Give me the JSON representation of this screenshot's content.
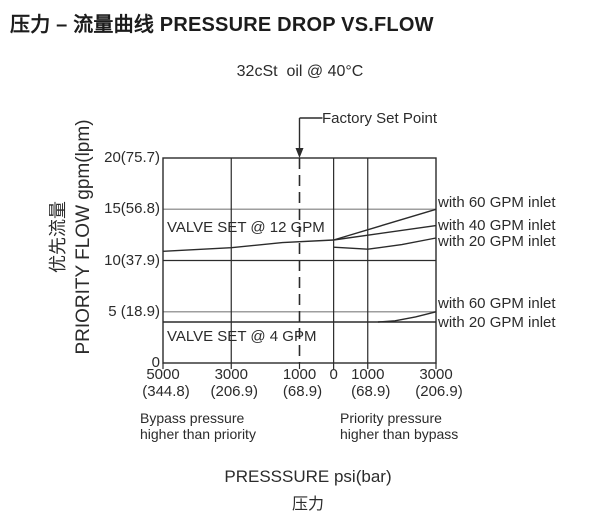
{
  "title": "压力 – 流量曲线 PRESSURE DROP VS.FLOW",
  "chart_data": {
    "type": "line",
    "title": "压力 – 流量曲线 PRESSURE DROP VS.FLOW",
    "subtitle": "32cSt  oil @ 40°C",
    "ylabel": "PRIORITY FLOW gpm(lpm)",
    "ylabel_cn": "优先流量",
    "xlabel": "PRESSSURE psi(bar)",
    "xlabel_cn": "压力",
    "xlim": [
      -5000,
      3000
    ],
    "ylim": [
      0,
      20
    ],
    "grid": "partial",
    "legend_position": "right-of-curves",
    "y_ticks": [
      {
        "value": 20,
        "label": "20(75.7)"
      },
      {
        "value": 15,
        "label": "15(56.8)",
        "grid": "gray"
      },
      {
        "value": 10,
        "label": "10(37.9)",
        "grid": "black"
      },
      {
        "value": 5,
        "label": "5 (18.9)",
        "grid": "gray"
      },
      {
        "value": 0,
        "label": "0"
      }
    ],
    "x_ticks": [
      {
        "value": -5000,
        "psi": "5000",
        "bar": "(344.8)"
      },
      {
        "value": -3000,
        "psi": "3000",
        "bar": "(206.9)",
        "grid": true
      },
      {
        "value": -1000,
        "psi": "1000",
        "bar": "(68.9)",
        "dashed": true
      },
      {
        "value": 0,
        "psi": "0",
        "bar": "",
        "grid": true
      },
      {
        "value": 1000,
        "psi": "1000",
        "bar": "(68.9)",
        "grid": true
      },
      {
        "value": 3000,
        "psi": "3000",
        "bar": "(206.9)"
      }
    ],
    "series": [
      {
        "name": "VALVE SET @ 12 GPM (bypass pressure higher side)",
        "points": [
          [
            -5000,
            10.9
          ],
          [
            -3000,
            11.25
          ],
          [
            -1500,
            11.75
          ],
          [
            0,
            12
          ]
        ]
      },
      {
        "name": "with 60 GPM inlet (valve set @ 12 GPM)",
        "points": [
          [
            0,
            12
          ],
          [
            3000,
            15
          ]
        ]
      },
      {
        "name": "with 40 GPM inlet (valve set @ 12 GPM)",
        "points": [
          [
            0,
            12
          ],
          [
            3000,
            13.4
          ]
        ]
      },
      {
        "name": "with 20 GPM inlet (valve set @ 12 GPM)",
        "points": [
          [
            0,
            11.3
          ],
          [
            1000,
            11.1
          ],
          [
            2000,
            11.55
          ],
          [
            3000,
            12.2
          ]
        ]
      },
      {
        "name": "VALVE SET @ 4 GPM / with 20 GPM inlet",
        "points": [
          [
            -5000,
            4
          ],
          [
            3000,
            4
          ]
        ]
      },
      {
        "name": "with 60 GPM inlet (valve set @ 4 GPM)",
        "points": [
          [
            1300,
            4
          ],
          [
            1800,
            4.12
          ],
          [
            2400,
            4.5
          ],
          [
            3000,
            5
          ]
        ]
      }
    ],
    "curve_labels_upper": [
      "with 60 GPM inlet",
      "with 40 GPM inlet",
      "with 20 GPM inlet"
    ],
    "curve_labels_lower": [
      "with 60 GPM inlet",
      "with 20 GPM inlet"
    ],
    "annotations": {
      "factory_set_point": "Factory Set Point",
      "valve_set_12": "VALVE SET @ 12 GPM",
      "valve_set_4": "VALVE SET @ 4 GPM",
      "region_left": "Bypass pressure\nhigher than priority",
      "region_right": "Priority pressure\nhigher than bypass"
    },
    "colors": {
      "line": "#2b2b2b",
      "grid_gray": "#9e9e9e",
      "text": "#2b2b2b",
      "background": "#ffffff"
    }
  }
}
